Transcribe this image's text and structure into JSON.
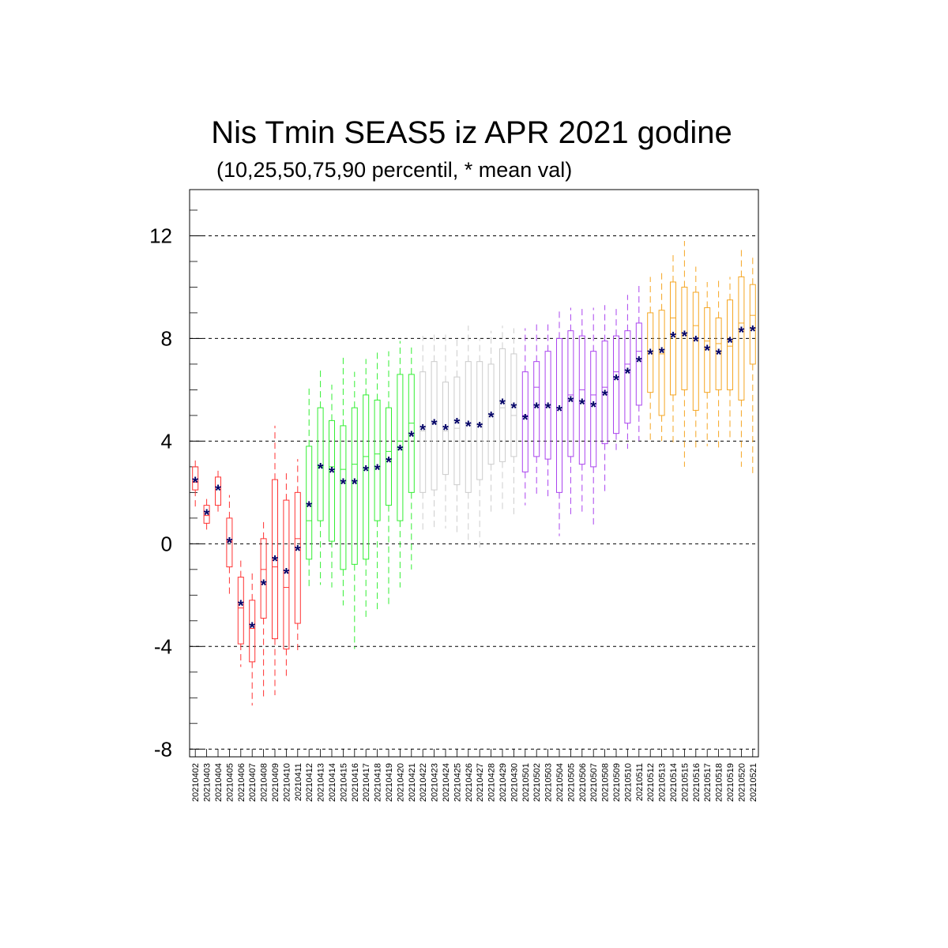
{
  "chart_data": {
    "type": "box",
    "title": "Nis Tmin SEAS5 iz APR 2021 godine",
    "subtitle": "(10,25,50,75,90 percentil, * mean val)",
    "xlabel": "",
    "ylabel": "",
    "ylim": [
      -8.3,
      13.8
    ],
    "yticks": [
      "-8",
      "-4",
      "0",
      "4",
      "8",
      "12"
    ],
    "grid": "dashed horizontal lines at -8, -4, 0, 4, 8, 12",
    "categories": [
      "20210402",
      "20210403",
      "20210404",
      "20210405",
      "20210406",
      "20210407",
      "20210408",
      "20210409",
      "20210410",
      "20210411",
      "20210412",
      "20210413",
      "20210414",
      "20210415",
      "20210416",
      "20210417",
      "20210418",
      "20210419",
      "20210420",
      "20210421",
      "20210422",
      "20210423",
      "20210424",
      "20210425",
      "20210426",
      "20210427",
      "20210428",
      "20210429",
      "20210430",
      "20210501",
      "20210502",
      "20210503",
      "20210504",
      "20210505",
      "20210506",
      "20210507",
      "20210508",
      "20210509",
      "20210510",
      "20210511",
      "20210512",
      "20210513",
      "20210514",
      "20210515",
      "20210516",
      "20210517",
      "20210518",
      "20210519",
      "20210520",
      "20210521"
    ],
    "colors": {
      "april_early": "#ff3333",
      "april_mid": "#33ee33",
      "april_late": "#cccccc",
      "may_early": "#aa44ee",
      "may_mid": "#f5a623",
      "mean_marker": "#000066",
      "grid": "#000000"
    },
    "groups": [
      {
        "color_key": "april_early",
        "from": "20210402",
        "to": "20210411"
      },
      {
        "color_key": "april_mid",
        "from": "20210412",
        "to": "20210421"
      },
      {
        "color_key": "april_late",
        "from": "20210422",
        "to": "20210430"
      },
      {
        "color_key": "may_early",
        "from": "20210501",
        "to": "20210511"
      },
      {
        "color_key": "may_mid",
        "from": "20210512",
        "to": "20210521"
      }
    ],
    "p10": [
      1.4,
      0.5,
      1.2,
      -2.0,
      -4.8,
      -6.3,
      -6.0,
      -5.9,
      -5.3,
      -4.2,
      -1.8,
      -1.6,
      -1.7,
      -2.4,
      -4.1,
      -2.9,
      -2.6,
      -2.4,
      -1.7,
      -1.0,
      0.4,
      0.5,
      0.6,
      0.3,
      0.1,
      -0.2,
      1.1,
      1.3,
      1.0,
      1.5,
      1.9,
      1.7,
      0.3,
      1.0,
      1.1,
      0.6,
      2.0,
      3.6,
      3.7,
      4.0,
      4.0,
      4.0,
      3.8,
      3.0,
      3.7,
      3.8,
      3.6,
      4.0,
      3.0,
      2.6
    ],
    "p25": [
      2.1,
      0.8,
      1.5,
      -0.9,
      -3.9,
      -4.6,
      -2.9,
      -3.7,
      -4.1,
      -3.1,
      -0.6,
      0.9,
      0.1,
      -1.0,
      -0.8,
      -0.6,
      0.9,
      1.5,
      0.9,
      2.0,
      2.0,
      2.1,
      2.7,
      2.3,
      2.0,
      2.5,
      3.1,
      3.2,
      3.4,
      2.8,
      3.4,
      3.3,
      2.0,
      3.4,
      3.1,
      3.0,
      3.9,
      4.3,
      4.7,
      5.4,
      5.9,
      5.0,
      5.8,
      6.0,
      5.2,
      5.9,
      6.0,
      6.0,
      5.6,
      7.0
    ],
    "p50": [
      2.4,
      1.1,
      2.2,
      0.1,
      -2.5,
      -3.3,
      -1.0,
      -0.9,
      -1.7,
      0.2,
      0.9,
      3.0,
      3.0,
      2.9,
      3.1,
      3.4,
      3.5,
      3.6,
      4.0,
      4.7,
      4.4,
      4.7,
      4.4,
      4.5,
      4.7,
      4.7,
      5.0,
      5.3,
      5.0,
      5.0,
      6.1,
      5.4,
      5.3,
      5.8,
      6.0,
      5.8,
      6.1,
      6.7,
      7.0,
      7.5,
      7.5,
      7.4,
      8.8,
      8.2,
      8.5,
      7.9,
      7.8,
      7.7,
      8.6,
      8.9
    ],
    "p75": [
      3.0,
      1.5,
      2.6,
      1.0,
      -1.3,
      -2.2,
      0.2,
      2.5,
      1.7,
      2.0,
      3.8,
      5.3,
      4.8,
      4.6,
      5.3,
      5.8,
      5.6,
      5.3,
      6.6,
      6.6,
      6.7,
      7.1,
      6.3,
      6.5,
      7.1,
      7.1,
      7.0,
      7.6,
      7.4,
      6.7,
      7.1,
      7.5,
      8.0,
      8.3,
      8.1,
      7.5,
      7.9,
      8.1,
      8.3,
      8.6,
      9.0,
      9.1,
      10.2,
      10.0,
      9.8,
      9.2,
      8.8,
      9.5,
      10.4,
      10.1
    ],
    "p90": [
      3.3,
      1.9,
      3.0,
      1.9,
      -0.6,
      -1.1,
      1.0,
      4.6,
      2.8,
      3.3,
      6.1,
      6.8,
      6.2,
      7.3,
      6.7,
      7.2,
      7.5,
      7.5,
      7.9,
      7.8,
      8.1,
      8.2,
      8.2,
      8.1,
      8.5,
      8.0,
      8.3,
      8.5,
      8.4,
      8.4,
      8.7,
      8.6,
      9.2,
      9.2,
      9.2,
      9.2,
      9.3,
      9.3,
      9.7,
      10.1,
      10.4,
      10.6,
      11.4,
      11.8,
      10.8,
      10.2,
      10.3,
      10.4,
      11.6,
      11.3
    ],
    "mean": [
      2.45,
      1.2,
      2.15,
      0.1,
      -2.35,
      -3.2,
      -1.55,
      -0.6,
      -1.1,
      -0.2,
      1.5,
      3.0,
      2.85,
      2.4,
      2.4,
      2.9,
      2.95,
      3.25,
      3.7,
      4.25,
      4.5,
      4.7,
      4.5,
      4.75,
      4.65,
      4.6,
      5.0,
      5.5,
      5.35,
      4.9,
      5.35,
      5.35,
      5.25,
      5.6,
      5.5,
      5.4,
      5.85,
      6.45,
      6.7,
      7.15,
      7.45,
      7.5,
      8.1,
      8.15,
      7.95,
      7.6,
      7.45,
      7.9,
      8.3,
      8.35
    ]
  }
}
